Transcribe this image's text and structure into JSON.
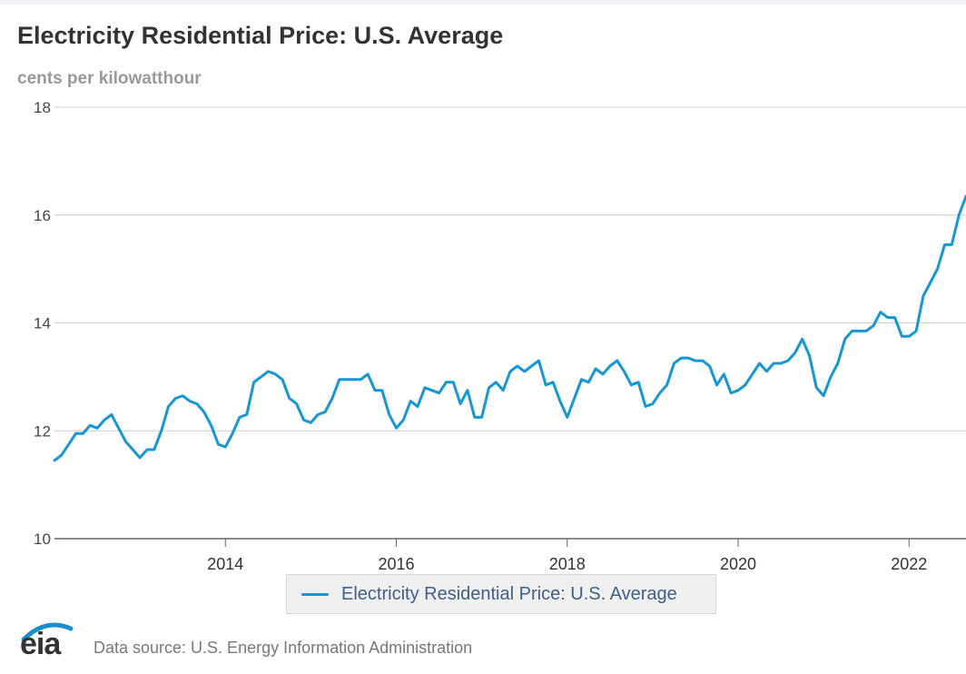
{
  "header": {
    "title": "Electricity Residential Price: U.S. Average",
    "units": "cents per kilowatthour"
  },
  "legend": {
    "label": "Electricity Residential Price: U.S. Average"
  },
  "footer": {
    "logo_text": "eia",
    "source": "Data source: U.S. Energy Information Administration"
  },
  "colors": {
    "series": "#1696d2",
    "grid": "#cccccc",
    "title": "#333333"
  },
  "chart_data": {
    "type": "line",
    "title": "Electricity Residential Price: U.S. Average",
    "ylabel": "cents per kilowatthour",
    "xlabel": "",
    "ylim": [
      10,
      18
    ],
    "xlim": [
      "2012-01",
      "2022-09"
    ],
    "y_ticks": [
      10,
      12,
      14,
      16,
      18
    ],
    "x_ticks": [
      "2014",
      "2016",
      "2018",
      "2020",
      "2022"
    ],
    "grid": true,
    "legend": "bottom",
    "series": [
      {
        "name": "Electricity Residential Price: U.S. Average",
        "x": [
          "2012-01",
          "2012-02",
          "2012-03",
          "2012-04",
          "2012-05",
          "2012-06",
          "2012-07",
          "2012-08",
          "2012-09",
          "2012-10",
          "2012-11",
          "2012-12",
          "2013-01",
          "2013-02",
          "2013-03",
          "2013-04",
          "2013-05",
          "2013-06",
          "2013-07",
          "2013-08",
          "2013-09",
          "2013-10",
          "2013-11",
          "2013-12",
          "2014-01",
          "2014-02",
          "2014-03",
          "2014-04",
          "2014-05",
          "2014-06",
          "2014-07",
          "2014-08",
          "2014-09",
          "2014-10",
          "2014-11",
          "2014-12",
          "2015-01",
          "2015-02",
          "2015-03",
          "2015-04",
          "2015-05",
          "2015-06",
          "2015-07",
          "2015-08",
          "2015-09",
          "2015-10",
          "2015-11",
          "2015-12",
          "2016-01",
          "2016-02",
          "2016-03",
          "2016-04",
          "2016-05",
          "2016-06",
          "2016-07",
          "2016-08",
          "2016-09",
          "2016-10",
          "2016-11",
          "2016-12",
          "2017-01",
          "2017-02",
          "2017-03",
          "2017-04",
          "2017-05",
          "2017-06",
          "2017-07",
          "2017-08",
          "2017-09",
          "2017-10",
          "2017-11",
          "2017-12",
          "2018-01",
          "2018-02",
          "2018-03",
          "2018-04",
          "2018-05",
          "2018-06",
          "2018-07",
          "2018-08",
          "2018-09",
          "2018-10",
          "2018-11",
          "2018-12",
          "2019-01",
          "2019-02",
          "2019-03",
          "2019-04",
          "2019-05",
          "2019-06",
          "2019-07",
          "2019-08",
          "2019-09",
          "2019-10",
          "2019-11",
          "2019-12",
          "2020-01",
          "2020-02",
          "2020-03",
          "2020-04",
          "2020-05",
          "2020-06",
          "2020-07",
          "2020-08",
          "2020-09",
          "2020-10",
          "2020-11",
          "2020-12",
          "2021-01",
          "2021-02",
          "2021-03",
          "2021-04",
          "2021-05",
          "2021-06",
          "2021-07",
          "2021-08",
          "2021-09",
          "2021-10",
          "2021-11",
          "2021-12",
          "2022-01",
          "2022-02",
          "2022-03",
          "2022-04",
          "2022-05",
          "2022-06",
          "2022-07",
          "2022-08",
          "2022-09"
        ],
        "y": [
          11.45,
          11.55,
          11.75,
          11.95,
          11.95,
          12.1,
          12.05,
          12.2,
          12.3,
          12.05,
          11.8,
          11.65,
          11.5,
          11.65,
          11.65,
          12.0,
          12.45,
          12.6,
          12.65,
          12.55,
          12.5,
          12.35,
          12.1,
          11.75,
          11.7,
          11.95,
          12.25,
          12.3,
          12.9,
          13.0,
          13.1,
          13.05,
          12.95,
          12.6,
          12.5,
          12.2,
          12.15,
          12.3,
          12.35,
          12.6,
          12.95,
          12.95,
          12.95,
          12.95,
          13.05,
          12.75,
          12.75,
          12.3,
          12.05,
          12.2,
          12.55,
          12.45,
          12.8,
          12.75,
          12.7,
          12.9,
          12.9,
          12.5,
          12.75,
          12.25,
          12.25,
          12.8,
          12.9,
          12.75,
          13.1,
          13.2,
          13.1,
          13.2,
          13.3,
          12.85,
          12.9,
          12.55,
          12.25,
          12.6,
          12.95,
          12.9,
          13.15,
          13.05,
          13.2,
          13.3,
          13.1,
          12.85,
          12.9,
          12.45,
          12.5,
          12.7,
          12.85,
          13.25,
          13.35,
          13.35,
          13.3,
          13.3,
          13.2,
          12.85,
          13.05,
          12.7,
          12.75,
          12.85,
          13.05,
          13.25,
          13.1,
          13.25,
          13.25,
          13.3,
          13.45,
          13.7,
          13.4,
          12.8,
          12.65,
          13.0,
          13.25,
          13.7,
          13.85,
          13.85,
          13.85,
          13.95,
          14.2,
          14.1,
          14.1,
          13.75,
          13.75,
          13.85,
          14.5,
          14.75,
          15.0,
          15.45,
          15.45,
          16.0,
          16.35
        ]
      }
    ]
  }
}
